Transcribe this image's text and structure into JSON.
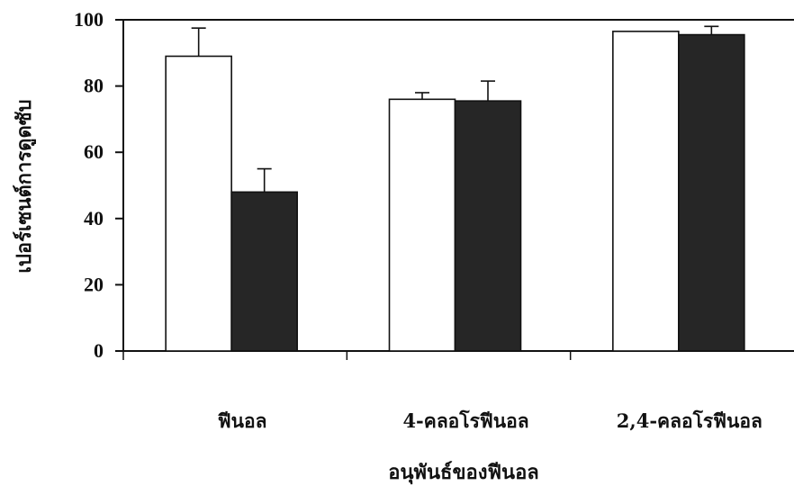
{
  "chart_data": {
    "type": "bar",
    "title": "",
    "xlabel": "อนุพันธ์ของฟีนอล",
    "ylabel": "เปอร์เซนต์การดูดซับ",
    "ylim": [
      0,
      100
    ],
    "yticks": [
      "0",
      "20",
      "40",
      "60",
      "80",
      "100"
    ],
    "grid": false,
    "categories": [
      "ฟีนอล",
      "4-คลอโรฟีนอล",
      "2,4-คลอโรฟีนอล"
    ],
    "series": [
      {
        "color": "#ffffff",
        "values": [
          89,
          76,
          96.5
        ],
        "errors": [
          8.5,
          2,
          0
        ]
      },
      {
        "color": "#262626",
        "values": [
          48,
          75.5,
          95.5
        ],
        "errors": [
          7,
          6,
          2.5
        ]
      }
    ]
  }
}
